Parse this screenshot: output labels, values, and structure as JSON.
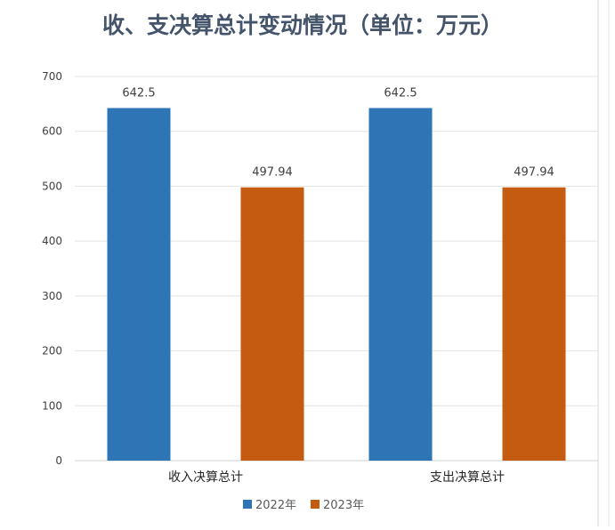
{
  "chart_data": {
    "type": "bar",
    "title": "收、支决算总计变动情况（单位：万元）",
    "categories": [
      "收入决算总计",
      "支出决算总计"
    ],
    "series": [
      {
        "name": "2022年",
        "values": [
          642.5,
          642.5
        ],
        "labels": [
          "642.5",
          "642.5"
        ],
        "color": "#2E75B6"
      },
      {
        "name": "2023年",
        "values": [
          497.94,
          497.94
        ],
        "labels": [
          "497.94",
          "497.94"
        ],
        "color": "#C55A11"
      }
    ],
    "ylim": [
      0,
      700
    ],
    "yticks": [
      0,
      100,
      200,
      300,
      400,
      500,
      600,
      700
    ],
    "grid": true,
    "legend_position": "bottom"
  }
}
